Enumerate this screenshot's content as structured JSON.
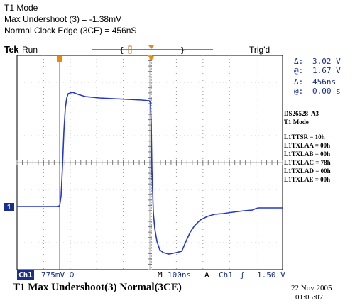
{
  "header": {
    "line1": "T1 Mode",
    "line2": "Max Undershoot (3) = -1.38mV",
    "line3": "Normal Clock Edge (3CE) = 456nS"
  },
  "status": {
    "brand": "Tek",
    "run": "Run",
    "trig": "Trig'd"
  },
  "cursors": {
    "delta_v_label": "Δ:",
    "delta_v": "3.02 V",
    "at_v_label": "@:",
    "at_v": "1.67 V",
    "delta_t_label": "Δ:",
    "delta_t": "456ns",
    "at_t_label": "@:",
    "at_t": "0.00 s"
  },
  "side_info": {
    "device": "DS26528  A3",
    "mode": "T1 Mode",
    "registers": [
      "L1TTSR = 10h",
      "L1TXLAA = 00h",
      "L1TXLAB = 00h",
      "L1TXLAC = 78h",
      "L1TXLAD = 00h",
      "L1TXLAE = 00h"
    ]
  },
  "footer": {
    "channel": "Ch1",
    "scale": "775mV Ω",
    "m_label": "M",
    "timebase": "100ns",
    "a_label": "A",
    "trig_ch": "Ch1",
    "slope": "ʃ",
    "trig_level": "1.50 V",
    "caption": "T1 Max Undershoot(3)  Normal(3CE)",
    "date": "22 Nov 2005",
    "time": "01:05:07"
  },
  "channel_marker": "1",
  "colors": {
    "trace": "#2336d6",
    "text": "#1a2f8a",
    "grid": "#888888"
  }
}
